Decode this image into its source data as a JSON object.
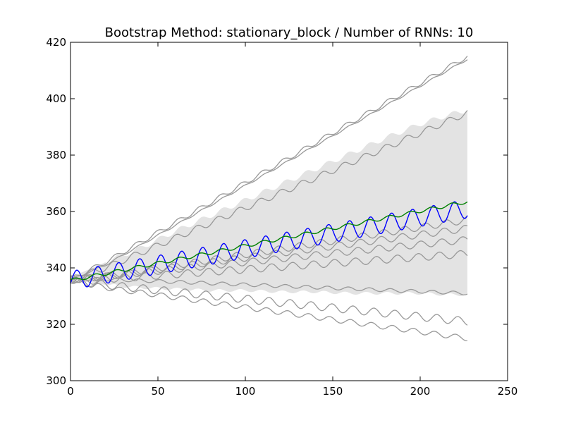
{
  "chart_data": {
    "type": "line",
    "title": "Bootstrap Method: stationary_block / Number of RNNs: 10",
    "xlabel": "",
    "ylabel": "",
    "xlim": [
      0,
      250
    ],
    "ylim": [
      300,
      420
    ],
    "x_ticks": [
      0,
      50,
      100,
      150,
      200,
      250
    ],
    "y_ticks": [
      300,
      320,
      340,
      360,
      380,
      400,
      420
    ],
    "grid": false,
    "x_end": 227,
    "colors": {
      "band": "#e3e3e3",
      "rnn_lines": "#999999",
      "actual": "#0000ff",
      "mean": "#008000"
    },
    "band": {
      "x": [
        0,
        5,
        20,
        40,
        60,
        80,
        100,
        120,
        140,
        160,
        180,
        200,
        215,
        227
      ],
      "upper": [
        336,
        338,
        342,
        347,
        353,
        358.5,
        364,
        369.5,
        375,
        380.5,
        386,
        391,
        394,
        396
      ],
      "lower": [
        336,
        335.5,
        334,
        333,
        332.5,
        332,
        332,
        331.5,
        331.5,
        331,
        331,
        331,
        330.5,
        330.5
      ]
    },
    "rnn_series": [
      {
        "x": [
          0,
          5,
          20,
          227
        ],
        "y": [
          336,
          337,
          341,
          414
        ],
        "amp": 0.3
      },
      {
        "x": [
          0,
          5,
          20,
          227
        ],
        "y": [
          336,
          337.5,
          342,
          415
        ],
        "amp": 0.8
      },
      {
        "x": [
          0,
          5,
          20,
          227
        ],
        "y": [
          336,
          337,
          340,
          395
        ],
        "amp": 1.1
      },
      {
        "x": [
          0,
          5,
          20,
          227
        ],
        "y": [
          336,
          336,
          337,
          357
        ],
        "amp": 1.2
      },
      {
        "x": [
          0,
          5,
          20,
          227
        ],
        "y": [
          336,
          336,
          337,
          354
        ],
        "amp": 1.2
      },
      {
        "x": [
          0,
          5,
          20,
          227
        ],
        "y": [
          336,
          336,
          337,
          350
        ],
        "amp": 1.2
      },
      {
        "x": [
          0,
          5,
          20,
          227
        ],
        "y": [
          336,
          335,
          336,
          345
        ],
        "amp": 1.3
      },
      {
        "x": [
          0,
          5,
          20,
          227
        ],
        "y": [
          336,
          335,
          334,
          321
        ],
        "amp": 1.4
      },
      {
        "x": [
          0,
          5,
          20,
          227
        ],
        "y": [
          336,
          335,
          333,
          315
        ],
        "amp": 0.9
      },
      {
        "x": [
          0,
          5,
          20,
          227
        ],
        "y": [
          336,
          336,
          336,
          331
        ],
        "amp": 0.6
      }
    ],
    "actual": {
      "x": [
        0,
        227
      ],
      "y": [
        335.5,
        361
      ],
      "amp": 3.3
    },
    "mean": {
      "x": [
        0,
        227
      ],
      "y": [
        335.5,
        363.5
      ],
      "amp": 0.6
    }
  }
}
